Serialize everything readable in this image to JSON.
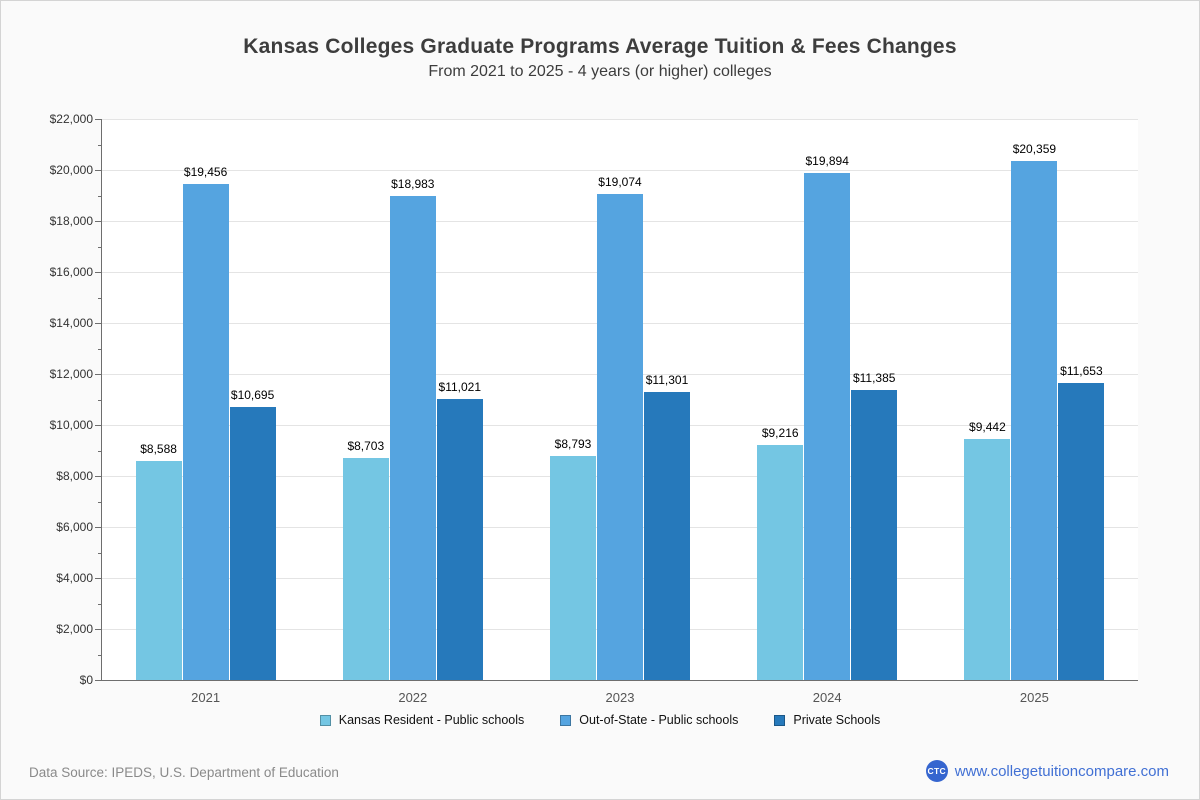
{
  "chart_data": {
    "type": "bar",
    "title": "Kansas Colleges Graduate Programs Average Tuition & Fees Changes",
    "subtitle": "From 2021 to 2025 - 4 years (or higher) colleges",
    "categories": [
      "2021",
      "2022",
      "2023",
      "2024",
      "2025"
    ],
    "series": [
      {
        "name": "Kansas Resident - Public schools",
        "color": "#74c6e3",
        "values": [
          8588,
          8703,
          8793,
          9216,
          9442
        ]
      },
      {
        "name": "Out-of-State - Public schools",
        "color": "#55a4e0",
        "values": [
          19456,
          18983,
          19074,
          19894,
          20359
        ]
      },
      {
        "name": "Private Schools",
        "color": "#2679bb",
        "values": [
          10695,
          11021,
          11301,
          11385,
          11653
        ]
      }
    ],
    "ylim": [
      0,
      22000
    ],
    "ytick_step": 2000,
    "ytick_minor_step": 1000,
    "grid": true,
    "legend_position": "bottom",
    "value_label_prefix": "$"
  },
  "footer": {
    "source": "Data Source: IPEDS, U.S. Department of Education",
    "logo_text": "CTC",
    "site": "www.collegetuitioncompare.com"
  }
}
